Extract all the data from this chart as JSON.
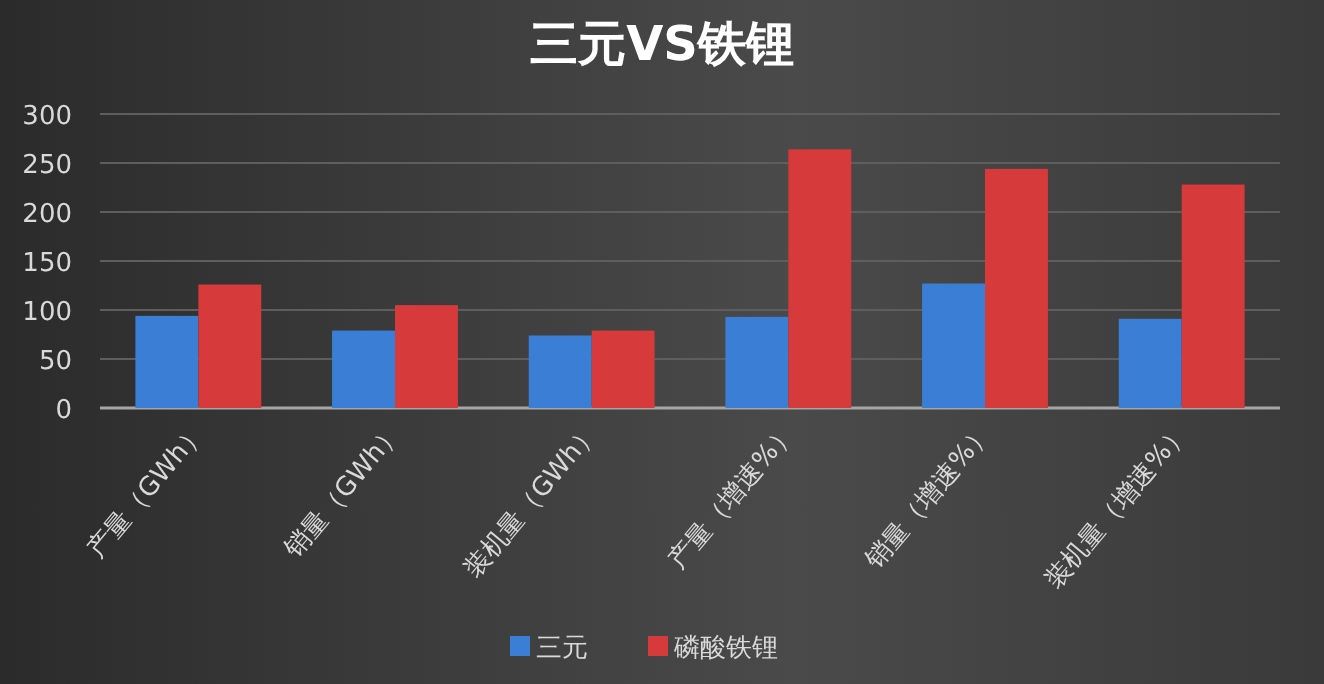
{
  "chart_data": {
    "type": "bar",
    "title": "三元VS铁锂",
    "categories": [
      "产量（GWh）",
      "销量（GWh）",
      "装机量（GWh）",
      "产量（增速%）",
      "销量（增速%）",
      "装机量（增速%）"
    ],
    "series": [
      {
        "name": "三元",
        "color": "#3a7fd5",
        "values": [
          94,
          79,
          74,
          93,
          127,
          91
        ]
      },
      {
        "name": "磷酸铁锂",
        "color": "#d63a3a",
        "values": [
          126,
          105,
          79,
          264,
          244,
          228
        ]
      }
    ],
    "ylim": [
      0,
      300
    ],
    "yticks": [
      0,
      50,
      100,
      150,
      200,
      250,
      300
    ],
    "grid": "y",
    "legend": "bottom"
  }
}
